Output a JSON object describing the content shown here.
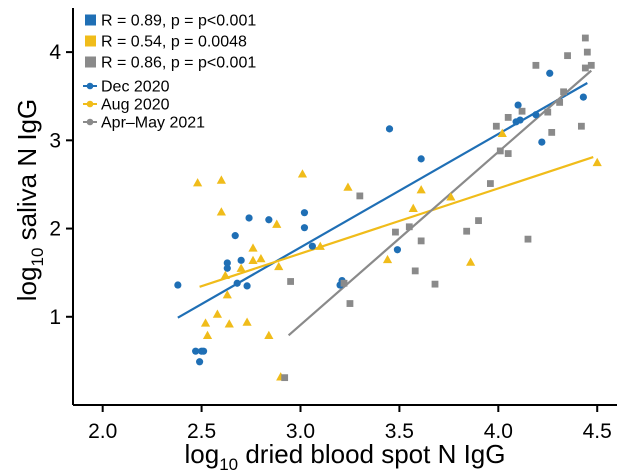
{
  "chart_data": {
    "type": "scatter",
    "xlabel": {
      "prefix": "log",
      "sub": "10",
      "rest": " dried blood spot N IgG"
    },
    "ylabel": {
      "prefix": "log",
      "sub": "10",
      "rest": " saliva N IgG"
    },
    "xlim": [
      1.85,
      4.6
    ],
    "ylim": [
      0.0,
      4.5
    ],
    "x_ticks": [
      2.0,
      2.5,
      3.0,
      3.5,
      4.0,
      4.5
    ],
    "x_tick_labels": [
      "2.0",
      "2.5",
      "3.0",
      "3.5",
      "4.0",
      "4.5"
    ],
    "y_ticks": [
      1,
      2,
      3,
      4
    ],
    "y_tick_labels": [
      "1",
      "2",
      "3",
      "4"
    ],
    "grid": false,
    "legend_placement": "top-left",
    "stat_legend": [
      {
        "text": "R = 0.89, p = p<0.001",
        "color": "#1f6fb5"
      },
      {
        "text": "R = 0.54, p = 0.0048",
        "color": "#f0bc1a"
      },
      {
        "text": "R = 0.86, p = p<0.001",
        "color": "#8a8a8a"
      }
    ],
    "series": [
      {
        "name": "Dec 2020",
        "color": "#1f6fb5",
        "marker": "circle",
        "points": [
          [
            2.38,
            1.36
          ],
          [
            2.47,
            0.61
          ],
          [
            2.49,
            0.49
          ],
          [
            2.5,
            0.61
          ],
          [
            2.51,
            0.61
          ],
          [
            2.63,
            1.61
          ],
          [
            2.63,
            1.55
          ],
          [
            2.67,
            1.92
          ],
          [
            2.68,
            1.38
          ],
          [
            2.7,
            1.64
          ],
          [
            2.73,
            1.35
          ],
          [
            2.74,
            2.12
          ],
          [
            2.84,
            2.1
          ],
          [
            3.02,
            2.18
          ],
          [
            3.02,
            2.01
          ],
          [
            3.06,
            1.8
          ],
          [
            3.2,
            1.36
          ],
          [
            3.21,
            1.41
          ],
          [
            3.45,
            3.13
          ],
          [
            3.49,
            1.76
          ],
          [
            3.61,
            2.79
          ],
          [
            4.09,
            3.21
          ],
          [
            4.1,
            3.4
          ],
          [
            4.11,
            3.23
          ],
          [
            4.19,
            3.29
          ],
          [
            4.22,
            2.98
          ],
          [
            4.26,
            3.76
          ],
          [
            4.43,
            3.49
          ]
        ],
        "fit": [
          [
            2.38,
            0.99
          ],
          [
            4.45,
            3.65
          ]
        ]
      },
      {
        "name": "Aug 2020",
        "color": "#f0bc1a",
        "marker": "triangle",
        "points": [
          [
            2.48,
            2.52
          ],
          [
            2.52,
            0.93
          ],
          [
            2.53,
            0.79
          ],
          [
            2.58,
            1.03
          ],
          [
            2.6,
            2.55
          ],
          [
            2.6,
            2.19
          ],
          [
            2.62,
            1.47
          ],
          [
            2.63,
            1.25
          ],
          [
            2.64,
            0.92
          ],
          [
            2.7,
            1.55
          ],
          [
            2.73,
            0.94
          ],
          [
            2.76,
            1.78
          ],
          [
            2.76,
            1.64
          ],
          [
            2.8,
            1.66
          ],
          [
            2.84,
            0.79
          ],
          [
            2.88,
            2.05
          ],
          [
            2.89,
            1.57
          ],
          [
            2.9,
            0.32
          ],
          [
            3.01,
            2.62
          ],
          [
            3.1,
            1.8
          ],
          [
            3.24,
            2.47
          ],
          [
            3.44,
            1.65
          ],
          [
            3.57,
            2.23
          ],
          [
            3.61,
            2.44
          ],
          [
            3.76,
            2.36
          ],
          [
            3.86,
            1.62
          ],
          [
            4.02,
            3.08
          ],
          [
            4.5,
            2.75
          ]
        ],
        "fit": [
          [
            2.49,
            1.34
          ],
          [
            4.48,
            2.81
          ]
        ]
      },
      {
        "name": "Apr–May 2021",
        "color": "#8a8a8a",
        "marker": "square",
        "points": [
          [
            2.92,
            0.31
          ],
          [
            2.95,
            1.4
          ],
          [
            3.22,
            1.38
          ],
          [
            3.25,
            1.15
          ],
          [
            3.3,
            2.37
          ],
          [
            3.48,
            1.96
          ],
          [
            3.55,
            2.02
          ],
          [
            3.58,
            1.52
          ],
          [
            3.61,
            1.86
          ],
          [
            3.68,
            1.37
          ],
          [
            3.84,
            1.97
          ],
          [
            3.9,
            2.09
          ],
          [
            3.96,
            2.51
          ],
          [
            3.99,
            3.16
          ],
          [
            4.01,
            2.88
          ],
          [
            4.05,
            3.26
          ],
          [
            4.05,
            2.85
          ],
          [
            4.12,
            3.33
          ],
          [
            4.15,
            1.88
          ],
          [
            4.19,
            3.85
          ],
          [
            4.25,
            3.32
          ],
          [
            4.27,
            3.09
          ],
          [
            4.31,
            3.43
          ],
          [
            4.33,
            3.55
          ],
          [
            4.35,
            3.96
          ],
          [
            4.42,
            3.16
          ],
          [
            4.44,
            3.82
          ],
          [
            4.44,
            4.16
          ],
          [
            4.45,
            4.0
          ],
          [
            4.47,
            3.85
          ]
        ],
        "fit": [
          [
            2.94,
            0.79
          ],
          [
            4.47,
            3.79
          ]
        ]
      }
    ]
  }
}
